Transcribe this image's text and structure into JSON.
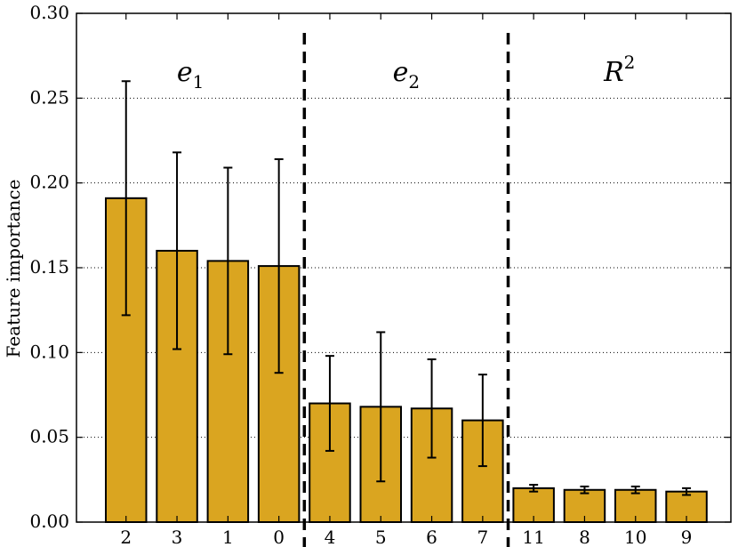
{
  "chart_data": {
    "type": "bar",
    "ylabel": "Feature importance",
    "ylim": [
      0,
      0.3
    ],
    "yticks": [
      "0.00",
      "0.05",
      "0.10",
      "0.15",
      "0.20",
      "0.25",
      "0.30"
    ],
    "grid": "y-dotted",
    "bar_color": "#DAA520",
    "categories": [
      "2",
      "3",
      "1",
      "0",
      "4",
      "5",
      "6",
      "7",
      "11",
      "8",
      "10",
      "9"
    ],
    "values": [
      0.191,
      0.16,
      0.154,
      0.151,
      0.07,
      0.068,
      0.067,
      0.06,
      0.02,
      0.019,
      0.019,
      0.018
    ],
    "errors": [
      0.069,
      0.058,
      0.055,
      0.063,
      0.028,
      0.044,
      0.029,
      0.027,
      0.002,
      0.002,
      0.002,
      0.002
    ],
    "groups": [
      {
        "base": "e",
        "sub": "1",
        "sup": ""
      },
      {
        "base": "e",
        "sub": "2",
        "sup": ""
      },
      {
        "base": "R",
        "sub": "",
        "sup": "2"
      }
    ],
    "group_boundaries_after": [
      3,
      7
    ]
  }
}
